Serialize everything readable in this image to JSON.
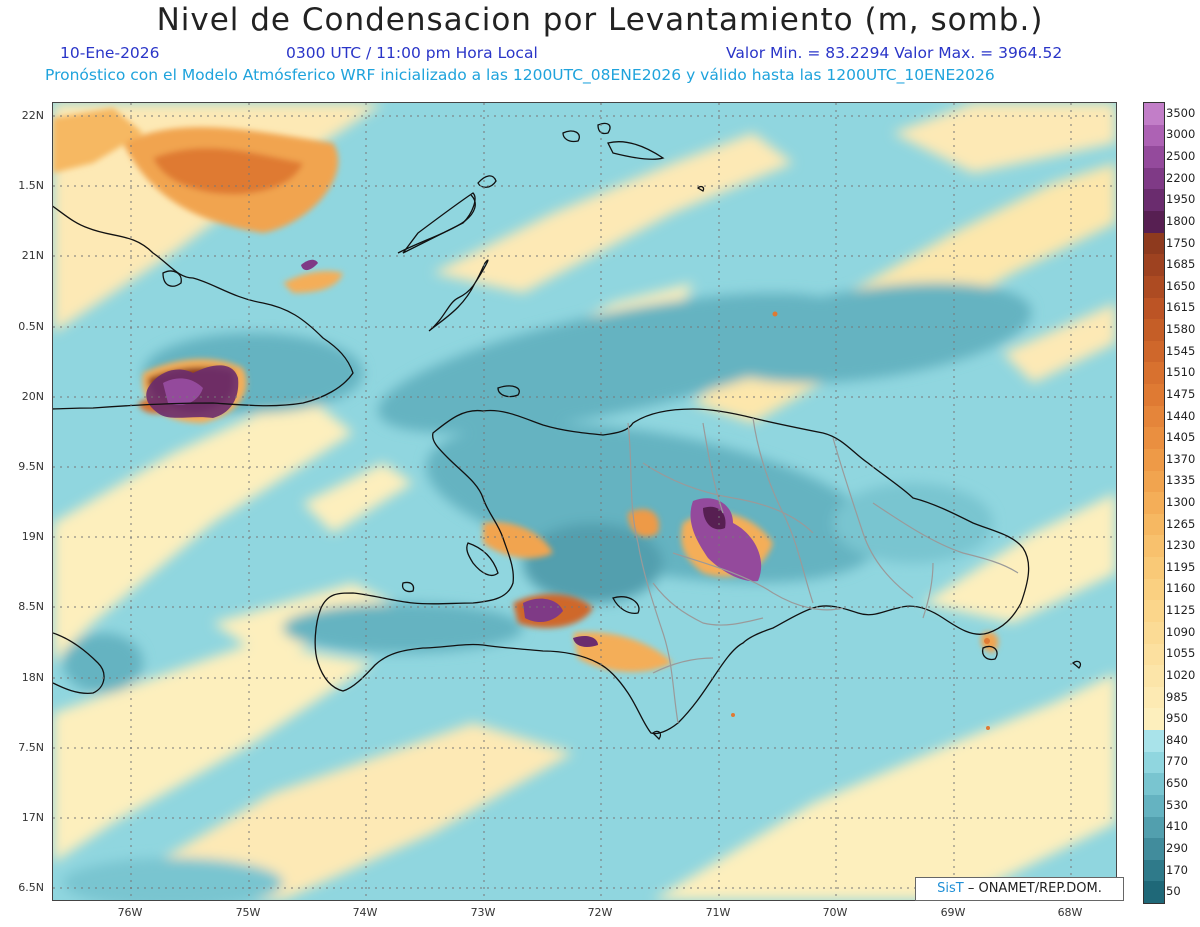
{
  "header": {
    "title": "Nivel de Condensacion por Levantamiento (m, somb.)",
    "date": "10-Ene-2026",
    "time": "0300 UTC / 11:00 pm Hora Local",
    "min_max": "Valor Min. = 83.2294   Valor Max. = 3964.52",
    "model_info": "Pronóstico con el Modelo Atmósferico WRF inicializado a las 1200UTC_08ENE2026 y válido hasta las  1200UTC_10ENE2026"
  },
  "axes": {
    "lat_labels": [
      "22N",
      "1.5N",
      "21N",
      "0.5N",
      "20N",
      "9.5N",
      "19N",
      "8.5N",
      "18N",
      "7.5N",
      "17N",
      "6.5N"
    ],
    "lon_labels": [
      "76W",
      "75W",
      "74W",
      "73W",
      "72W",
      "71W",
      "70W",
      "69W",
      "68W"
    ]
  },
  "legend": {
    "levels": [
      "3500",
      "3000",
      "2500",
      "2200",
      "1950",
      "1800",
      "1750",
      "1685",
      "1650",
      "1615",
      "1580",
      "1545",
      "1510",
      "1475",
      "1440",
      "1405",
      "1370",
      "1335",
      "1300",
      "1265",
      "1230",
      "1195",
      "1160",
      "1125",
      "1090",
      "1055",
      "1020",
      "985",
      "950",
      "840",
      "770",
      "650",
      "530",
      "410",
      "290",
      "170",
      "50"
    ],
    "colors": [
      "#c27ec8",
      "#ad62b4",
      "#944a9c",
      "#7f3a86",
      "#6a2c6e",
      "#571f52",
      "#8e3a1e",
      "#9e4220",
      "#ad4b22",
      "#bc5425",
      "#c55e27",
      "#cf672b",
      "#d8712f",
      "#df7a33",
      "#e5853a",
      "#ea8f40",
      "#ee9a47",
      "#f1a44f",
      "#f4ae58",
      "#f6b862",
      "#f8c16d",
      "#f9c977",
      "#fad081",
      "#fbd68b",
      "#fbdb95",
      "#fce09f",
      "#fce5a9",
      "#fdeab3",
      "#fdefbd",
      "#a9e3ea",
      "#90d6df",
      "#79c5d0",
      "#65b3c1",
      "#529fae",
      "#418c9c",
      "#2f7a8a",
      "#1f6878"
    ]
  },
  "credit": {
    "brand": "SisT",
    "text": "– ONAMET/REP.DOM."
  }
}
